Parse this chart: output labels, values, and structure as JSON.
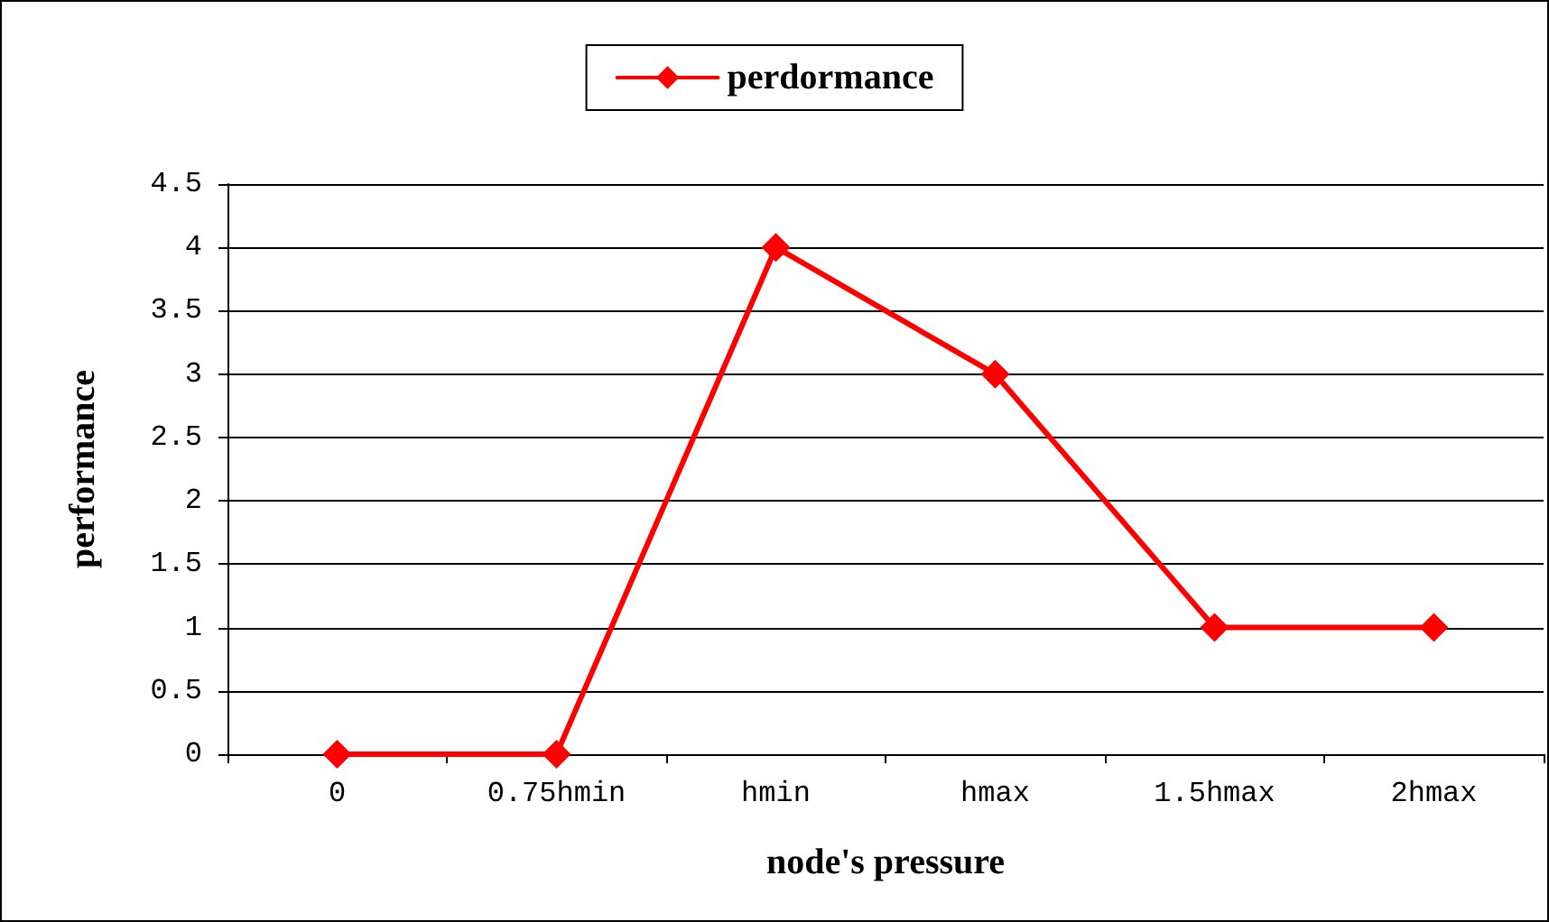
{
  "chart_data": {
    "type": "line",
    "xlabel": "node's pressure",
    "ylabel": "performance",
    "categories": [
      "0",
      "0.75hmin",
      "hmin",
      "hmax",
      "1.5hmax",
      "2hmax"
    ],
    "series": [
      {
        "name": "perdormance",
        "color": "#ff0000",
        "values": [
          0,
          0,
          4,
          3,
          1,
          1
        ]
      }
    ],
    "ylim": [
      0,
      4.5
    ],
    "yticks": [
      0,
      0.5,
      1,
      1.5,
      2,
      2.5,
      3,
      3.5,
      4,
      4.5
    ],
    "grid": "y",
    "legend": "top",
    "marker": "diamond",
    "line_style": "solid"
  }
}
